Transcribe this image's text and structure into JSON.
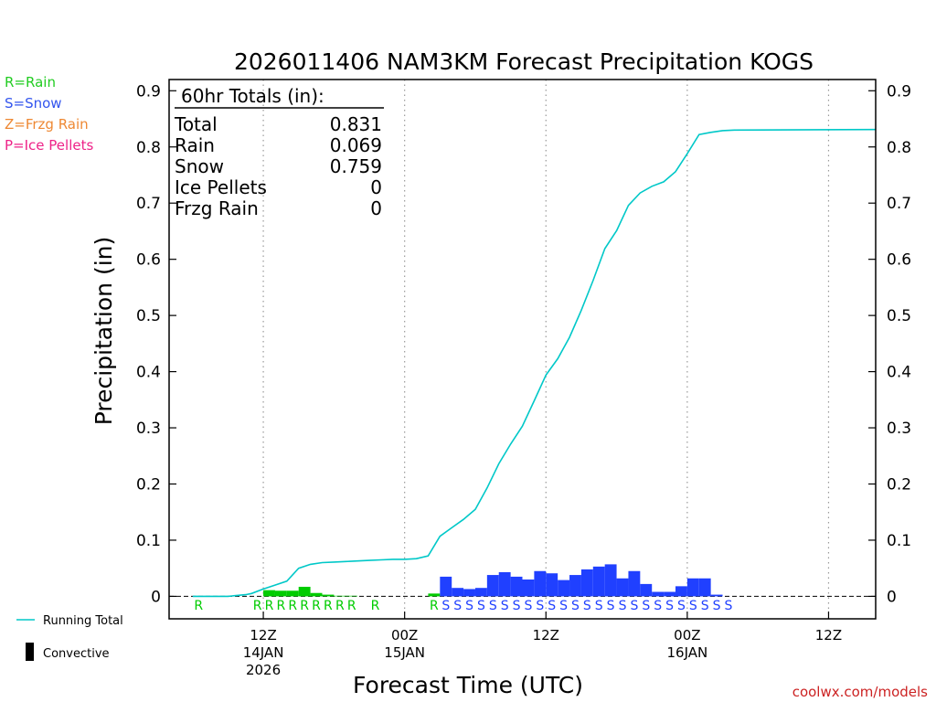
{
  "chart_data": {
    "type": "bar",
    "title": "2026011406 NAM3KM Forecast Precipitation KOGS",
    "ylabel": "Precipitation (in)",
    "xlabel": "Forecast Time (UTC)",
    "ylim": [
      -0.04,
      0.92
    ],
    "xlim_hours": [
      -2,
      58
    ],
    "yticks": [
      "0",
      "0.1",
      "0.2",
      "0.3",
      "0.4",
      "0.5",
      "0.6",
      "0.7",
      "0.8",
      "0.9"
    ],
    "xticks": [
      {
        "hour": 6,
        "line1": "12Z",
        "line2": "14JAN",
        "line3": "2026"
      },
      {
        "hour": 18,
        "line1": "00Z",
        "line2": "15JAN",
        "line3": ""
      },
      {
        "hour": 30,
        "line1": "12Z",
        "line2": "",
        "line3": ""
      },
      {
        "hour": 42,
        "line1": "00Z",
        "line2": "16JAN",
        "line3": ""
      },
      {
        "hour": 54,
        "line1": "12Z",
        "line2": "",
        "line3": ""
      }
    ],
    "type_legend": [
      {
        "label": "R=Rain",
        "color": "#22cc22"
      },
      {
        "label": "S=Snow",
        "color": "#3355ee"
      },
      {
        "label": "Z=Frzg Rain",
        "color": "#ee8833"
      },
      {
        "label": "P=Ice Pellets",
        "color": "#ee2288"
      }
    ],
    "totals": {
      "header": "60hr Totals (in):",
      "rows": [
        {
          "label": "Total",
          "value": "0.831"
        },
        {
          "label": "Rain",
          "value": "0.069"
        },
        {
          "label": "Snow",
          "value": "0.759"
        },
        {
          "label": "Ice Pellets",
          "value": "0"
        },
        {
          "label": "Frzg Rain",
          "value": "0"
        }
      ]
    },
    "series": [
      {
        "name": "Rain",
        "color": "#00cc00",
        "letter": "R",
        "bars": [
          {
            "hour": 6,
            "value": 0.011
          },
          {
            "hour": 7,
            "value": 0.01
          },
          {
            "hour": 8,
            "value": 0.01
          },
          {
            "hour": 9,
            "value": 0.017
          },
          {
            "hour": 10,
            "value": 0.006
          },
          {
            "hour": 11,
            "value": 0.003
          },
          {
            "hour": 12,
            "value": 0.001
          },
          {
            "hour": 13,
            "value": 0.001
          },
          {
            "hour": 20,
            "value": 0.005
          }
        ],
        "letter_hours": [
          0,
          5,
          6,
          7,
          8,
          9,
          10,
          11,
          12,
          13,
          15,
          20
        ]
      },
      {
        "name": "Snow",
        "color": "#2040ff",
        "letter": "S",
        "bars": [
          {
            "hour": 21,
            "value": 0.035
          },
          {
            "hour": 22,
            "value": 0.015
          },
          {
            "hour": 23,
            "value": 0.013
          },
          {
            "hour": 24,
            "value": 0.015
          },
          {
            "hour": 25,
            "value": 0.038
          },
          {
            "hour": 26,
            "value": 0.043
          },
          {
            "hour": 27,
            "value": 0.035
          },
          {
            "hour": 28,
            "value": 0.03
          },
          {
            "hour": 29,
            "value": 0.045
          },
          {
            "hour": 30,
            "value": 0.041
          },
          {
            "hour": 31,
            "value": 0.029
          },
          {
            "hour": 32,
            "value": 0.038
          },
          {
            "hour": 33,
            "value": 0.048
          },
          {
            "hour": 34,
            "value": 0.053
          },
          {
            "hour": 35,
            "value": 0.057
          },
          {
            "hour": 36,
            "value": 0.032
          },
          {
            "hour": 37,
            "value": 0.045
          },
          {
            "hour": 38,
            "value": 0.022
          },
          {
            "hour": 39,
            "value": 0.008
          },
          {
            "hour": 40,
            "value": 0.008
          },
          {
            "hour": 41,
            "value": 0.018
          },
          {
            "hour": 42,
            "value": 0.032
          },
          {
            "hour": 43,
            "value": 0.032
          },
          {
            "hour": 44,
            "value": 0.003
          }
        ],
        "letter_hours": [
          21,
          22,
          23,
          24,
          25,
          26,
          27,
          28,
          29,
          30,
          31,
          32,
          33,
          34,
          35,
          36,
          37,
          38,
          39,
          40,
          41,
          42,
          43,
          44,
          45
        ]
      }
    ],
    "running_total": {
      "name": "Running Total",
      "color": "#00c8c8",
      "points": [
        [
          0,
          0
        ],
        [
          3,
          0.0
        ],
        [
          4.5,
          0.003
        ],
        [
          5,
          0.005
        ],
        [
          6,
          0.013
        ],
        [
          7,
          0.02
        ],
        [
          8,
          0.027
        ],
        [
          9,
          0.05
        ],
        [
          10,
          0.057
        ],
        [
          11,
          0.06
        ],
        [
          12,
          0.061
        ],
        [
          13,
          0.062
        ],
        [
          14,
          0.063
        ],
        [
          15,
          0.064
        ],
        [
          16,
          0.065
        ],
        [
          17,
          0.066
        ],
        [
          18,
          0.066
        ],
        [
          19,
          0.067
        ],
        [
          20,
          0.072
        ],
        [
          21,
          0.107
        ],
        [
          22,
          0.122
        ],
        [
          23,
          0.137
        ],
        [
          24,
          0.155
        ],
        [
          25,
          0.193
        ],
        [
          26,
          0.236
        ],
        [
          27,
          0.271
        ],
        [
          28,
          0.303
        ],
        [
          29,
          0.348
        ],
        [
          30,
          0.394
        ],
        [
          31,
          0.423
        ],
        [
          32,
          0.461
        ],
        [
          33,
          0.509
        ],
        [
          34,
          0.562
        ],
        [
          35,
          0.619
        ],
        [
          36,
          0.651
        ],
        [
          37,
          0.696
        ],
        [
          38,
          0.718
        ],
        [
          39,
          0.73
        ],
        [
          40,
          0.738
        ],
        [
          41,
          0.756
        ],
        [
          42,
          0.788
        ],
        [
          43,
          0.822
        ],
        [
          44,
          0.826
        ],
        [
          45,
          0.829
        ],
        [
          46,
          0.83
        ],
        [
          58,
          0.831
        ]
      ]
    },
    "line_legend": [
      {
        "label": "Running Total",
        "kind": "line",
        "color": "#00c8c8"
      },
      {
        "label": "Convective",
        "kind": "box",
        "color": "#000000"
      }
    ],
    "watermark": "coolwx.com/models"
  }
}
